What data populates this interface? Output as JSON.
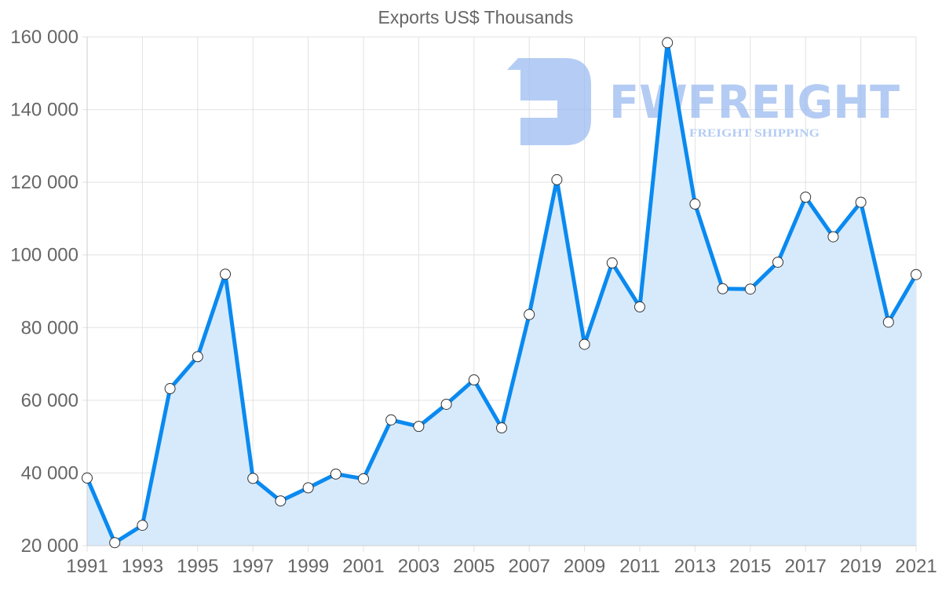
{
  "chart_data": {
    "type": "line",
    "title": "Exports US$ Thousands",
    "xlabel": "",
    "ylabel": "",
    "x": [
      1991,
      1992,
      1993,
      1994,
      1995,
      1996,
      1997,
      1998,
      1999,
      2000,
      2001,
      2002,
      2003,
      2004,
      2005,
      2006,
      2007,
      2008,
      2009,
      2010,
      2011,
      2012,
      2013,
      2014,
      2015,
      2016,
      2017,
      2018,
      2019,
      2020,
      2021
    ],
    "series": [
      {
        "name": "Exports US$ Thousands",
        "values": [
          38600,
          20800,
          25600,
          63200,
          72000,
          94700,
          38500,
          32300,
          35900,
          39700,
          38400,
          54600,
          52800,
          58900,
          65600,
          52400,
          83600,
          120700,
          75400,
          97800,
          85700,
          158400,
          114000,
          90700,
          90600,
          98000,
          115900,
          105000,
          114500,
          81500,
          94600
        ],
        "color": "#0a8af0",
        "fill": "#d7eafc"
      }
    ],
    "ylim": [
      20000,
      160000
    ],
    "xlim": [
      1991,
      2021
    ],
    "y_ticks": [
      20000,
      40000,
      60000,
      80000,
      100000,
      120000,
      140000,
      160000
    ],
    "y_tick_labels": [
      "20 000",
      "40 000",
      "60 000",
      "80 000",
      "100 000",
      "120 000",
      "140 000",
      "160 000"
    ],
    "x_tick_labels": [
      "1991",
      "1993",
      "1995",
      "1997",
      "1999",
      "2001",
      "2003",
      "2005",
      "2007",
      "2009",
      "2011",
      "2013",
      "2015",
      "2017",
      "2019",
      "2021"
    ],
    "grid": true,
    "legend": "none",
    "area_filled": true
  },
  "watermark": {
    "brand": "FWFREIGHT",
    "tagline": "FREIGHT SHIPPING",
    "color": "#9cbcf0"
  }
}
